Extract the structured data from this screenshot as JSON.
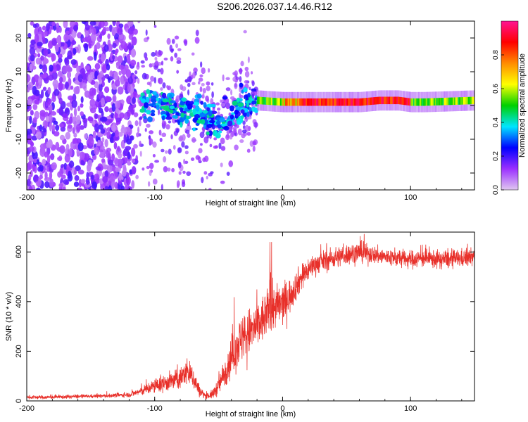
{
  "title": "S206.2026.037.14.46.R12",
  "colors": {
    "series": "#e8302a",
    "axis": "#000000"
  },
  "chart_data": [
    {
      "type": "heatmap",
      "name": "spectrogram",
      "xlabel": "Height of straight line (km)",
      "ylabel": "Frequency (Hz)",
      "xlim": [
        -200,
        150
      ],
      "ylim": [
        -25,
        25
      ],
      "xticks": [
        -200,
        -100,
        0,
        100
      ],
      "xtick_labels": [
        "-200",
        "-100",
        "0",
        "100"
      ],
      "yticks": [
        -20,
        -10,
        0,
        10,
        20
      ],
      "ytick_labels": [
        "-20",
        "-10",
        "0",
        "10",
        "20"
      ],
      "colorbar": {
        "label": "Normalized spectral amplitude",
        "range": [
          0,
          1
        ],
        "ticks": [
          0.0,
          0.2,
          0.4,
          0.6,
          0.8
        ],
        "tick_labels": [
          "0.0",
          "0.2",
          "0.4",
          "0.6",
          "0.8"
        ],
        "colormap": [
          "#e0c8f0",
          "#9b30ff",
          "#0000ff",
          "#00e5ff",
          "#00d000",
          "#ffff00",
          "#ff8c00",
          "#ff0000",
          "#ff1493"
        ]
      },
      "ridge": {
        "x": [
          -115,
          -100,
          -90,
          -80,
          -70,
          -60,
          -50,
          -45,
          -40,
          -35,
          -30,
          -25,
          -20,
          0,
          20,
          40,
          60,
          75,
          90,
          100,
          110,
          150
        ],
        "y": [
          0,
          0,
          0,
          -1,
          -2,
          -3,
          -5,
          -4,
          -3,
          -1,
          1,
          1,
          1.5,
          1,
          1,
          1,
          1,
          1.5,
          1.5,
          1,
          1,
          1.5
        ]
      }
    },
    {
      "type": "line",
      "name": "snr",
      "xlabel": "Height of straight line (km)",
      "ylabel": "SNR (10 * v/v)",
      "xlim": [
        -200,
        150
      ],
      "ylim": [
        0,
        680
      ],
      "xticks": [
        -200,
        -100,
        0,
        100
      ],
      "xtick_labels": [
        "-200",
        "-100",
        "0",
        "100"
      ],
      "yticks": [
        0,
        200,
        400,
        600
      ],
      "ytick_labels": [
        "0",
        "200",
        "400",
        "600"
      ],
      "series": [
        {
          "name": "SNR",
          "x": [
            -200,
            -180,
            -160,
            -140,
            -120,
            -110,
            -100,
            -90,
            -80,
            -75,
            -70,
            -65,
            -60,
            -55,
            -50,
            -45,
            -40,
            -35,
            -30,
            -25,
            -20,
            -15,
            -10,
            -5,
            0,
            5,
            10,
            15,
            20,
            25,
            30,
            40,
            50,
            60,
            70,
            80,
            90,
            100,
            110,
            120,
            130,
            140,
            150
          ],
          "y": [
            15,
            15,
            18,
            20,
            25,
            40,
            60,
            75,
            90,
            120,
            95,
            40,
            20,
            25,
            60,
            120,
            180,
            230,
            260,
            280,
            300,
            330,
            360,
            380,
            390,
            420,
            460,
            500,
            530,
            550,
            560,
            575,
            590,
            600,
            590,
            580,
            575,
            570,
            575,
            570,
            570,
            575,
            580
          ],
          "noise": [
            6,
            6,
            6,
            6,
            8,
            15,
            25,
            30,
            35,
            45,
            40,
            20,
            10,
            15,
            30,
            50,
            70,
            80,
            80,
            80,
            80,
            80,
            80,
            70,
            70,
            60,
            50,
            45,
            40,
            35,
            35,
            35,
            35,
            35,
            30,
            30,
            30,
            30,
            30,
            30,
            30,
            30,
            30
          ]
        }
      ]
    }
  ]
}
